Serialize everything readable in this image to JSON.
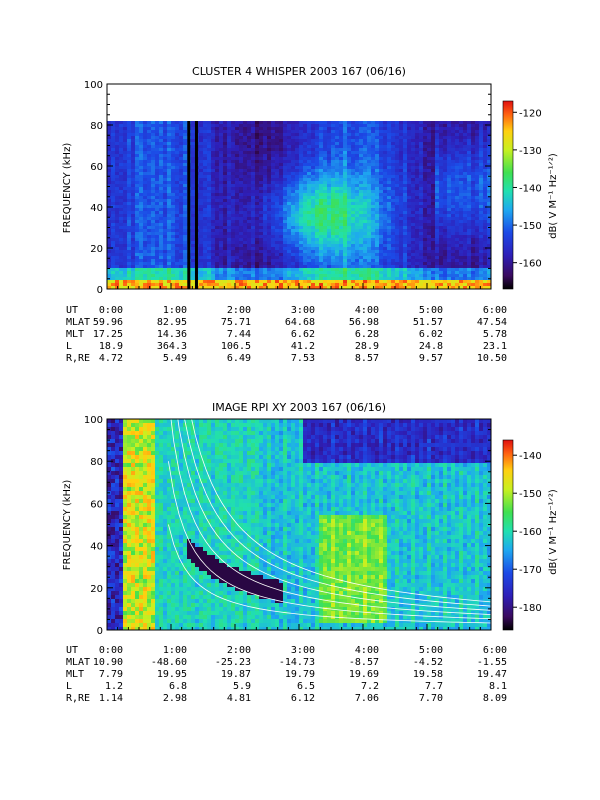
{
  "chart_data": [
    {
      "type": "heatmap",
      "title": "CLUSTER 4 WHISPER 2003 167 (06/16)",
      "ylabel": "FREQUENCY (kHz)",
      "ylim": [
        0,
        100
      ],
      "yticks": [
        "0",
        "20",
        "40",
        "60",
        "80",
        "100"
      ],
      "xticks": [
        "0:00",
        "1:00",
        "2:00",
        "3:00",
        "4:00",
        "5:00",
        "6:00"
      ],
      "xlim_hours": [
        0,
        6
      ],
      "data_top_khz": 80,
      "colorbar": {
        "label": "dB( V M⁻¹ Hz⁻¹ᐟ²)",
        "ticks": [
          "-120",
          "-130",
          "-140",
          "-150",
          "-160"
        ],
        "range": [
          -167,
          -117
        ]
      },
      "ephemeris": {
        "rows": [
          {
            "label": "UT",
            "values": [
              "0:00",
              "1:00",
              "2:00",
              "3:00",
              "4:00",
              "5:00",
              "6:00"
            ]
          },
          {
            "label": "MLAT",
            "values": [
              "59.96",
              "82.95",
              "75.71",
              "64.68",
              "56.98",
              "51.57",
              "47.54"
            ]
          },
          {
            "label": "MLT",
            "values": [
              "17.25",
              "14.36",
              "7.44",
              "6.62",
              "6.28",
              "6.02",
              "5.78"
            ]
          },
          {
            "label": "L",
            "values": [
              "18.9",
              "364.3",
              "106.5",
              "41.2",
              "28.9",
              "24.8",
              "23.1"
            ]
          },
          {
            "label": "R,RE",
            "values": [
              "4.72",
              "5.49",
              "6.49",
              "7.53",
              "8.57",
              "9.57",
              "10.50"
            ]
          }
        ]
      }
    },
    {
      "type": "heatmap",
      "title": "IMAGE RPI XY 2003 167 (06/16)",
      "ylabel": "FREQUENCY (kHz)",
      "ylim": [
        0,
        100
      ],
      "yticks": [
        "0",
        "20",
        "40",
        "60",
        "80",
        "100"
      ],
      "xticks": [
        "0:00",
        "1:00",
        "2:00",
        "3:00",
        "4:00",
        "5:00",
        "6:00"
      ],
      "xlim_hours": [
        0,
        6
      ],
      "colorbar": {
        "label": "dB( V M⁻¹ Hz⁻¹ᐟ²)",
        "ticks": [
          "-140",
          "-150",
          "-160",
          "-170",
          "-180"
        ],
        "range": [
          -186,
          -136
        ]
      },
      "ephemeris": {
        "rows": [
          {
            "label": "UT",
            "values": [
              "0:00",
              "1:00",
              "2:00",
              "3:00",
              "4:00",
              "5:00",
              "6:00"
            ]
          },
          {
            "label": "MLAT",
            "values": [
              "10.90",
              "-48.60",
              "-25.23",
              "-14.73",
              "-8.57",
              "-4.52",
              "-1.55"
            ]
          },
          {
            "label": "MLT",
            "values": [
              "7.79",
              "19.95",
              "19.87",
              "19.79",
              "19.69",
              "19.58",
              "19.47"
            ]
          },
          {
            "label": "L",
            "values": [
              "1.2",
              "6.8",
              "5.9",
              "6.5",
              "7.2",
              "7.7",
              "8.1"
            ]
          },
          {
            "label": "R,RE",
            "values": [
              "1.14",
              "2.98",
              "4.81",
              "6.12",
              "7.06",
              "7.70",
              "8.09"
            ]
          }
        ]
      }
    }
  ]
}
